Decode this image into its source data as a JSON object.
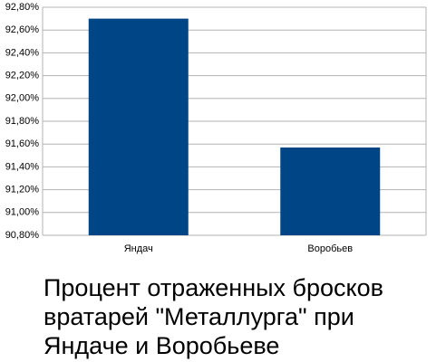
{
  "chart_data": {
    "type": "bar",
    "title": "Процент отраженных бросков вратарей \"Металлурга\" при Яндаче и Воробьеве",
    "categories": [
      "Яндач",
      "Воробьев"
    ],
    "values": [
      92.7,
      91.57
    ],
    "color": "#004586",
    "ylim": [
      90.8,
      92.8
    ],
    "yticks": [
      {
        "value": 90.8,
        "label": "90,80%"
      },
      {
        "value": 91.0,
        "label": "91,00%"
      },
      {
        "value": 91.2,
        "label": "91,20%"
      },
      {
        "value": 91.4,
        "label": "91,40%"
      },
      {
        "value": 91.6,
        "label": "91,60%"
      },
      {
        "value": 91.8,
        "label": "91,80%"
      },
      {
        "value": 92.0,
        "label": "92,00%"
      },
      {
        "value": 92.2,
        "label": "92,20%"
      },
      {
        "value": 92.4,
        "label": "92,40%"
      },
      {
        "value": 92.6,
        "label": "92,60%"
      },
      {
        "value": 92.8,
        "label": "92,80%"
      }
    ],
    "grid": true
  }
}
